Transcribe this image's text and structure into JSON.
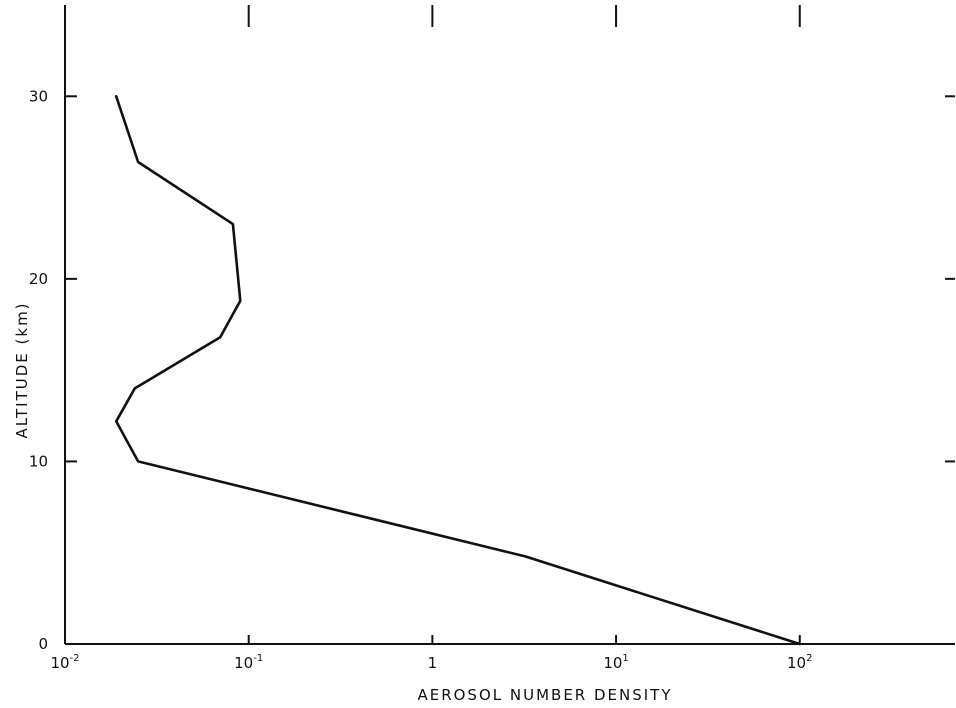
{
  "chart_data": {
    "type": "line",
    "title": "",
    "xlabel": "AEROSOL NUMBER DENSITY",
    "ylabel": "ALTITUDE (km)",
    "x_scale": "log",
    "xlim": [
      0.01,
      700
    ],
    "ylim": [
      0,
      35
    ],
    "grid": false,
    "x_ticks": [
      {
        "value": 0.01,
        "base": "10",
        "exp": "-2"
      },
      {
        "value": 0.1,
        "base": "10",
        "exp": "-1"
      },
      {
        "value": 1,
        "base": "1",
        "exp": ""
      },
      {
        "value": 10,
        "base": "10",
        "exp": "1"
      },
      {
        "value": 100,
        "base": "10",
        "exp": "2"
      }
    ],
    "y_ticks": [
      0,
      10,
      20,
      30
    ],
    "series": [
      {
        "x": [
          100,
          3.2,
          0.025,
          0.019,
          0.024,
          0.07,
          0.09,
          0.082,
          0.025,
          0.019
        ],
        "y": [
          0,
          4.8,
          10,
          12.2,
          14,
          16.8,
          18.8,
          23,
          26.4,
          30
        ]
      }
    ]
  }
}
